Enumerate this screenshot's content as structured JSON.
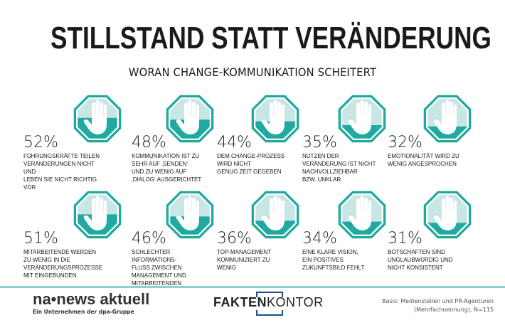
{
  "title": "STILLSTAND STATT VERÄNDERUNG",
  "subtitle": "WORAN CHANGE-KOMMUNIKATION SCHEITERT",
  "colors": {
    "teal": "#1fa9a0",
    "light_teal": "#c8e6e3",
    "text": "#1a1a1a"
  },
  "items": [
    {
      "value": "52%",
      "level": 52,
      "text": "Führungskräfte teilen\nVeränderungen nicht und\nleben sie nicht richtig vor"
    },
    {
      "value": "48%",
      "level": 48,
      "text": "Kommunikation ist zu\nsehr auf ‚Senden‘\nund zu wenig auf\n‚Dialog‘ ausgerichtet"
    },
    {
      "value": "44%",
      "level": 44,
      "text": "Dem Change-Prozess\nwird nicht\ngenug Zeit gegeben"
    },
    {
      "value": "35%",
      "level": 35,
      "text": "Nutzen der\nVeränderung ist nicht\nnachvollziehbar\nbzw. unklar"
    },
    {
      "value": "32%",
      "level": 32,
      "text": "Emotionalität wird zu\nwenig angesprochen"
    },
    {
      "value": "51%",
      "level": 51,
      "text": "Mitarbeitende werden\nzu wenig in die\nVeränderungsprozesse\nmit eingebunden"
    },
    {
      "value": "46%",
      "level": 46,
      "text": "Schlechter Informations-\nfluss zwischen\nManagement und\nMitarbeitenden"
    },
    {
      "value": "36%",
      "level": 36,
      "text": "Top-Management\nkommuniziert zu\nwenig"
    },
    {
      "value": "34%",
      "level": 34,
      "text": "Eine klare Vision,\nein positives\nZukunftsbild fehlt"
    },
    {
      "value": "31%",
      "level": 31,
      "text": "Botschaften sind\nunglaubwürdig und\nnicht konsistent"
    }
  ],
  "footer": {
    "logo_left": "na•news aktuell",
    "logo_left_sub": "Ein Unternehmen der dpa-Gruppe",
    "logo_center_bold": "FAKTEN",
    "logo_center_light": "KONTOR",
    "basis": "Basis: Medienstellen und PR-Agenturen\n(Mehrfachnennung), N=115"
  }
}
